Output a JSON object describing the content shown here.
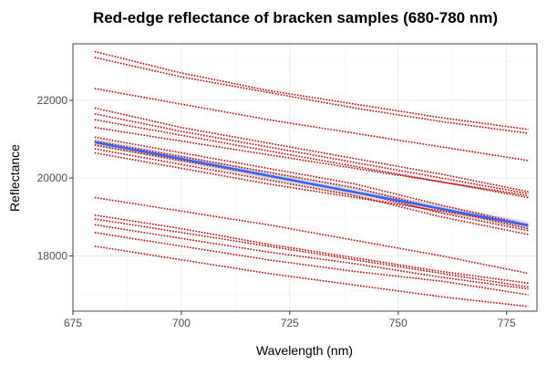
{
  "chart_data": {
    "type": "line",
    "title": "Red-edge reflectance of bracken samples (680-780 nm)",
    "xlabel": "Wavelength (nm)",
    "ylabel": "Reflectance",
    "xlim": [
      675,
      782
    ],
    "ylim": [
      16580,
      23450
    ],
    "x_ticks": [
      675,
      700,
      725,
      750,
      775
    ],
    "y_ticks": [
      18000,
      20000,
      22000
    ],
    "x_minor": [
      687.5,
      712.5,
      737.5,
      762.5
    ],
    "y_minor": [
      17000,
      19000,
      21000,
      23000
    ],
    "grid": true,
    "series": [
      {
        "x": [
          680,
          700,
          720,
          740,
          760,
          780
        ],
        "values": [
          23250,
          22700,
          22250,
          21900,
          21550,
          21250
        ]
      },
      {
        "x": [
          680,
          700,
          720,
          740,
          760,
          780
        ],
        "values": [
          23100,
          22600,
          22200,
          21800,
          21450,
          21150
        ]
      },
      {
        "x": [
          680,
          700,
          720,
          740,
          760,
          780
        ],
        "values": [
          22300,
          21900,
          21500,
          21150,
          20800,
          20450
        ]
      },
      {
        "x": [
          680,
          700,
          720,
          740,
          760,
          780
        ],
        "values": [
          21800,
          21300,
          20900,
          20500,
          20100,
          19650
        ]
      },
      {
        "x": [
          680,
          700,
          720,
          740,
          760,
          780
        ],
        "values": [
          21650,
          21200,
          20800,
          20400,
          20000,
          19600
        ]
      },
      {
        "x": [
          680,
          700,
          720,
          740,
          760,
          780
        ],
        "values": [
          21500,
          21100,
          20700,
          20300,
          19900,
          19550
        ]
      },
      {
        "x": [
          680,
          700,
          720,
          740,
          760,
          780
        ],
        "values": [
          21300,
          20950,
          20600,
          20250,
          19900,
          19500
        ]
      },
      {
        "x": [
          680,
          700,
          720,
          740,
          760,
          780
        ],
        "values": [
          21050,
          20650,
          20250,
          19850,
          19300,
          18800
        ]
      },
      {
        "x": [
          680,
          700,
          720,
          740,
          760,
          780
        ],
        "values": [
          20950,
          20550,
          20150,
          19750,
          19200,
          18700
        ]
      },
      {
        "x": [
          680,
          700,
          720,
          740,
          760,
          780
        ],
        "values": [
          20850,
          20450,
          20050,
          19650,
          19100,
          18650
        ]
      },
      {
        "x": [
          680,
          700,
          720,
          740,
          760,
          780
        ],
        "values": [
          20750,
          20350,
          19950,
          19550,
          19000,
          18550
        ]
      },
      {
        "x": [
          680,
          700,
          720,
          740,
          760,
          780
        ],
        "values": [
          20650,
          20250,
          19850,
          19500,
          19150,
          18800
        ]
      },
      {
        "x": [
          680,
          700,
          720,
          740,
          760,
          780
        ],
        "values": [
          19500,
          19150,
          18800,
          18400,
          18000,
          17550
        ]
      },
      {
        "x": [
          680,
          700,
          720,
          740,
          760,
          780
        ],
        "values": [
          19050,
          18700,
          18300,
          17950,
          17600,
          17300
        ]
      },
      {
        "x": [
          680,
          700,
          720,
          740,
          760,
          780
        ],
        "values": [
          18950,
          18600,
          18250,
          17900,
          17550,
          17200
        ]
      },
      {
        "x": [
          680,
          700,
          720,
          740,
          760,
          780
        ],
        "values": [
          18800,
          18450,
          18100,
          17800,
          17450,
          17150
        ]
      },
      {
        "x": [
          680,
          700,
          720,
          740,
          760,
          780
        ],
        "values": [
          18600,
          18250,
          17900,
          17600,
          17350,
          17000
        ]
      },
      {
        "x": [
          680,
          700,
          720,
          740,
          760,
          780
        ],
        "values": [
          18250,
          17900,
          17550,
          17250,
          16950,
          16700
        ]
      }
    ],
    "fit": {
      "x": [
        680,
        780
      ],
      "values": [
        20920,
        18780
      ]
    },
    "colors": {
      "samples": "#d40000",
      "fit": "#3366ff",
      "band": "#999999"
    }
  }
}
